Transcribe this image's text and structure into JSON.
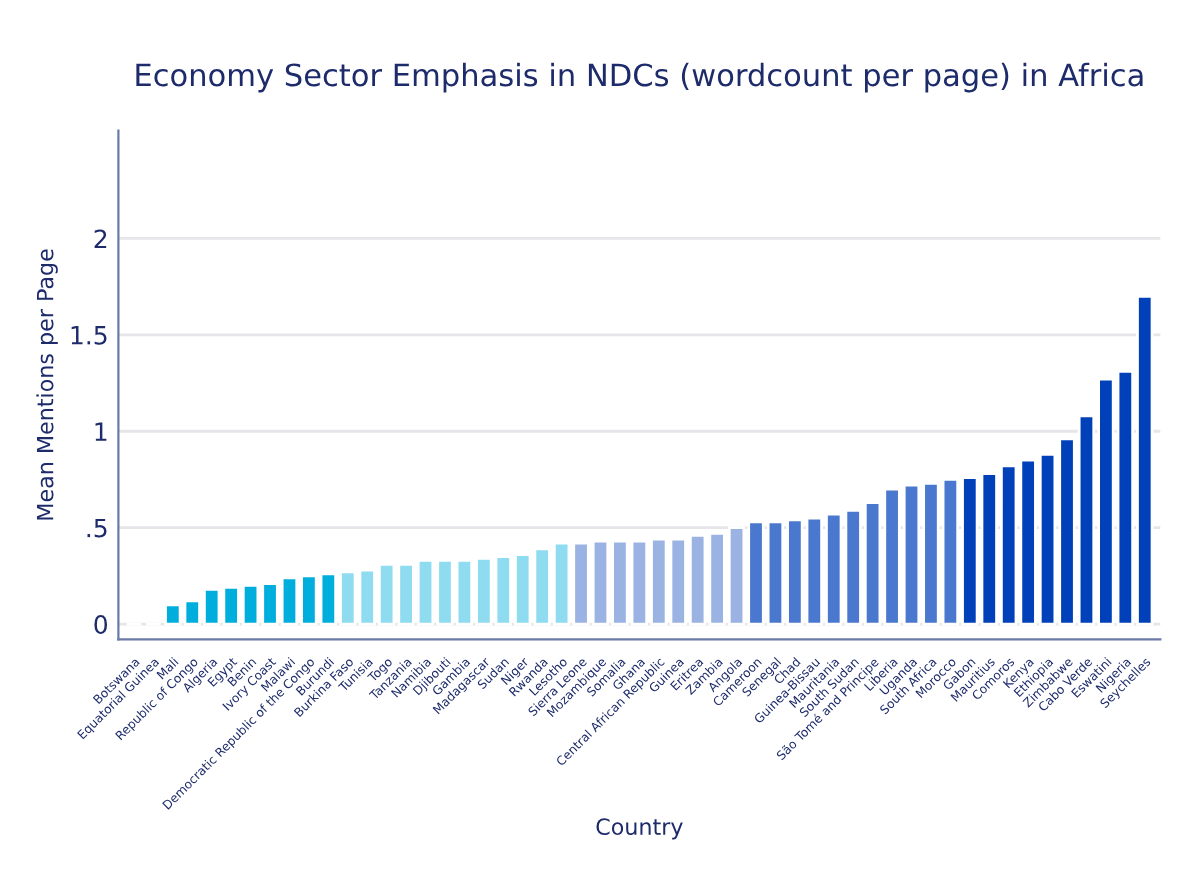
{
  "chart_data": {
    "type": "bar",
    "title": "Economy Sector Emphasis in NDCs (wordcount per page) in Africa",
    "xlabel": "Country",
    "ylabel": "Mean Mentions per Page",
    "categories": [
      "Botswana",
      "Equatorial Guinea",
      "Mali",
      "Republic of Congo",
      "Algeria",
      "Egypt",
      "Benin",
      "Ivory Coast",
      "Malawi",
      "Democratic Republic of the Congo",
      "Burundi",
      "Burkina Faso",
      "Tunisia",
      "Togo",
      "Tanzania",
      "Namibia",
      "Djibouti",
      "Gambia",
      "Madagascar",
      "Sudan",
      "Niger",
      "Rwanda",
      "Lesotho",
      "Sierra Leone",
      "Mozambique",
      "Somalia",
      "Ghana",
      "Central African Republic",
      "Guinea",
      "Eritrea",
      "Zambia",
      "Angola",
      "Cameroon",
      "Senegal",
      "Chad",
      "Guinea-Bissau",
      "Mauritania",
      "South Sudan",
      "São Tomé and Principe",
      "Liberia",
      "Uganda",
      "South Africa",
      "Morocco",
      "Gabon",
      "Mauritius",
      "Comoros",
      "Kenya",
      "Ethiopia",
      "Zimbabwe",
      "Cabo Verde",
      "Eswatini",
      "Nigeria",
      "Seychelles"
    ],
    "values": [
      0,
      0,
      0.1,
      0.12,
      0.18,
      0.19,
      0.2,
      0.21,
      0.24,
      0.25,
      0.26,
      0.27,
      0.28,
      0.31,
      0.31,
      0.33,
      0.33,
      0.33,
      0.34,
      0.35,
      0.36,
      0.39,
      0.42,
      0.42,
      0.43,
      0.43,
      0.43,
      0.44,
      0.44,
      0.46,
      0.47,
      0.5,
      0.53,
      0.53,
      0.54,
      0.55,
      0.57,
      0.59,
      0.63,
      0.7,
      0.72,
      0.73,
      0.75,
      0.76,
      0.78,
      0.82,
      0.85,
      0.88,
      0.96,
      1.08,
      1.27,
      1.31,
      1.7
    ],
    "colors": [
      null,
      null,
      "#00aede",
      "#00aede",
      "#00aede",
      "#00aede",
      "#00aede",
      "#00aede",
      "#00aede",
      "#00aede",
      "#00aede",
      "#8fdcf0",
      "#8fdcf0",
      "#8fdcf0",
      "#8fdcf0",
      "#8fdcf0",
      "#8fdcf0",
      "#8fdcf0",
      "#8fdcf0",
      "#8fdcf0",
      "#8fdcf0",
      "#8fdcf0",
      "#8fdcf0",
      "#9ab3e3",
      "#9ab3e3",
      "#9ab3e3",
      "#9ab3e3",
      "#9ab3e3",
      "#9ab3e3",
      "#9ab3e3",
      "#9ab3e3",
      "#9ab3e3",
      "#4a78cf",
      "#4a78cf",
      "#4a78cf",
      "#4a78cf",
      "#4a78cf",
      "#4a78cf",
      "#4a78cf",
      "#4a78cf",
      "#4a78cf",
      "#4a78cf",
      "#4a78cf",
      "#0040b8",
      "#0040b8",
      "#0040b8",
      "#0040b8",
      "#0040b8",
      "#0040b8",
      "#0040b8",
      "#0040b8",
      "#0040b8",
      "#0040b8"
    ],
    "ylim": [
      -0.08,
      2.56
    ],
    "yticks": [
      0,
      {
        "value": 0.5,
        "label": ".5"
      },
      1,
      1.5,
      2
    ],
    "grid": "y",
    "legend": false
  }
}
